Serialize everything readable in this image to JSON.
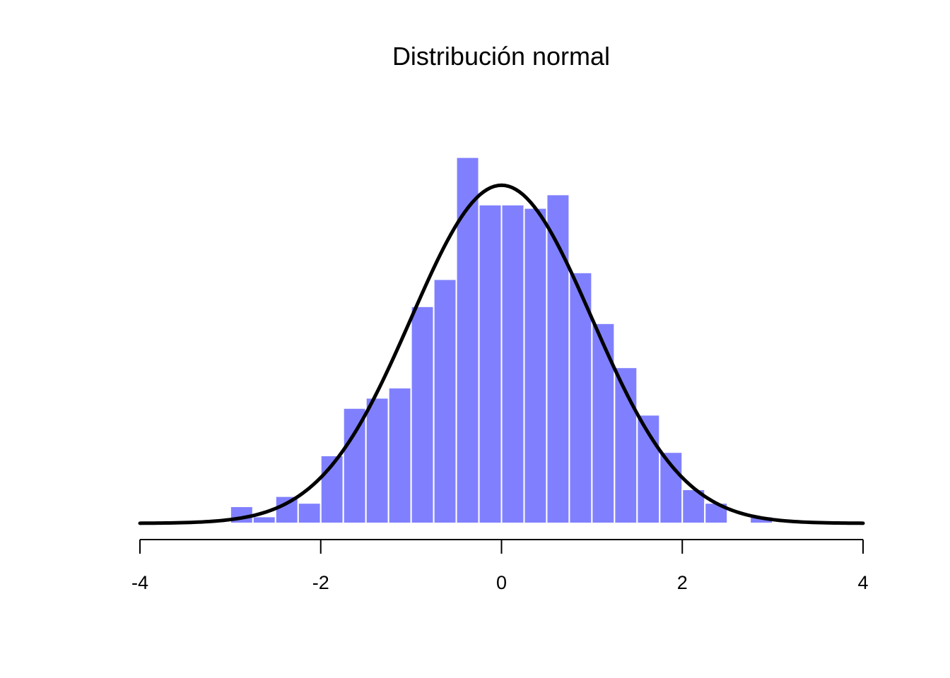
{
  "chart_data": {
    "type": "bar",
    "title": "Distribución normal",
    "xlabel": "",
    "ylabel": "",
    "xlim": [
      -4,
      4
    ],
    "ylim": [
      0,
      0.43
    ],
    "x_ticks": [
      -4,
      -2,
      0,
      2,
      4
    ],
    "x_tick_labels": [
      "-4",
      "-2",
      "0",
      "2",
      "4"
    ],
    "bin_width": 0.25,
    "bins": [
      {
        "start": -3.0,
        "end": -2.75,
        "density": 0.02
      },
      {
        "start": -2.75,
        "end": -2.5,
        "density": 0.008
      },
      {
        "start": -2.5,
        "end": -2.25,
        "density": 0.032
      },
      {
        "start": -2.25,
        "end": -2.0,
        "density": 0.024
      },
      {
        "start": -2.0,
        "end": -1.75,
        "density": 0.08
      },
      {
        "start": -1.75,
        "end": -1.5,
        "density": 0.136
      },
      {
        "start": -1.5,
        "end": -1.25,
        "density": 0.148
      },
      {
        "start": -1.25,
        "end": -1.0,
        "density": 0.16
      },
      {
        "start": -1.0,
        "end": -0.75,
        "density": 0.256
      },
      {
        "start": -0.75,
        "end": -0.5,
        "density": 0.288
      },
      {
        "start": -0.5,
        "end": -0.25,
        "density": 0.432
      },
      {
        "start": -0.25,
        "end": 0.0,
        "density": 0.376
      },
      {
        "start": 0.0,
        "end": 0.25,
        "density": 0.376
      },
      {
        "start": 0.25,
        "end": 0.5,
        "density": 0.372
      },
      {
        "start": 0.5,
        "end": 0.75,
        "density": 0.388
      },
      {
        "start": 0.75,
        "end": 1.0,
        "density": 0.296
      },
      {
        "start": 1.0,
        "end": 1.25,
        "density": 0.236
      },
      {
        "start": 1.25,
        "end": 1.5,
        "density": 0.184
      },
      {
        "start": 1.5,
        "end": 1.75,
        "density": 0.128
      },
      {
        "start": 1.75,
        "end": 2.0,
        "density": 0.084
      },
      {
        "start": 2.0,
        "end": 2.25,
        "density": 0.04
      },
      {
        "start": 2.25,
        "end": 2.5,
        "density": 0.024
      },
      {
        "start": 2.5,
        "end": 2.75,
        "density": 0.0
      },
      {
        "start": 2.75,
        "end": 3.0,
        "density": 0.008
      }
    ],
    "overlay_curve": {
      "type": "line",
      "distribution": "normal",
      "mean": 0,
      "sd": 1,
      "x_range": [
        -4,
        4
      ]
    },
    "grid": false,
    "legend": "none",
    "colors": {
      "bar_fill": "#8080ff",
      "bar_border": "#ffffff",
      "curve": "#000000",
      "axis": "#000000"
    }
  }
}
